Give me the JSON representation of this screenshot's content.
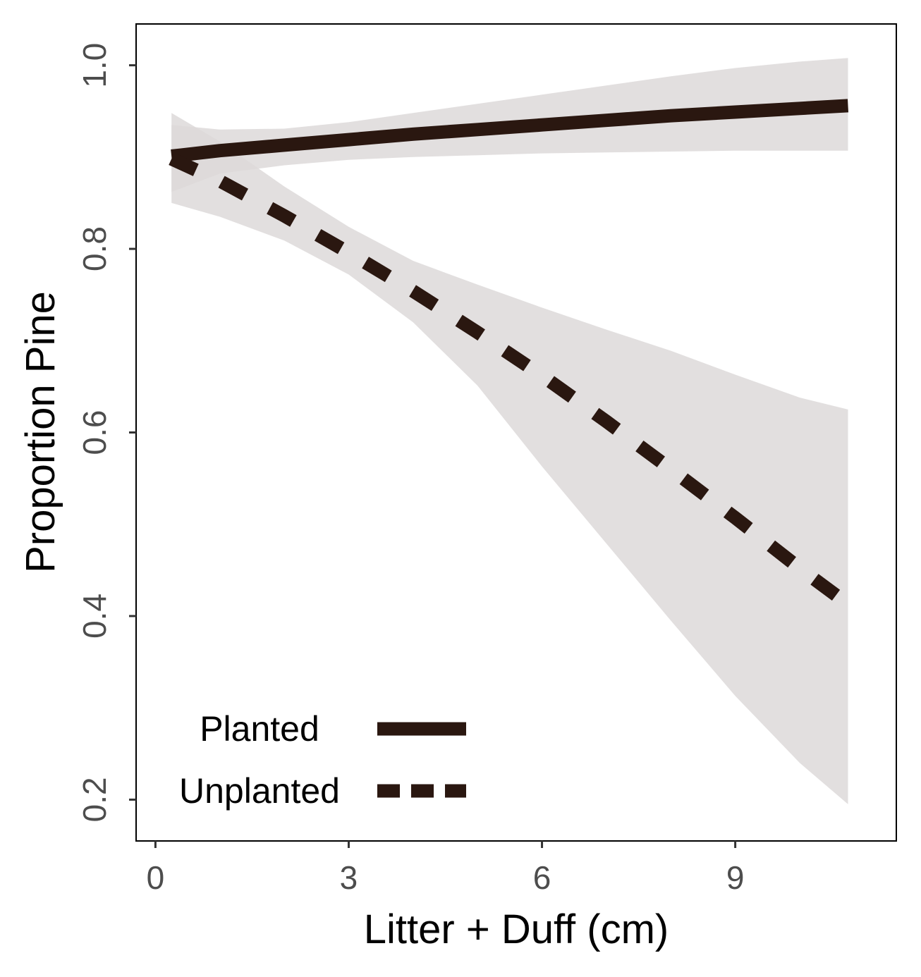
{
  "chart_data": {
    "type": "line",
    "title": "",
    "xlabel": "Litter + Duff (cm)",
    "ylabel": "Proportion Pine",
    "xlim": [
      -0.3,
      11.5
    ],
    "ylim": [
      0.155,
      1.045
    ],
    "xticks": [
      0,
      3,
      6,
      9
    ],
    "xtick_labels": [
      "0",
      "3",
      "6",
      "9"
    ],
    "yticks": [
      0.2,
      0.4,
      0.6,
      0.8,
      1.0
    ],
    "ytick_labels": [
      "0.2",
      "0.4",
      "0.6",
      "0.8",
      "1.0"
    ],
    "grid": false,
    "legend_position": "bottom-left",
    "series": [
      {
        "name": "Planted",
        "line_style": "solid",
        "color": "#2a1710",
        "x": [
          0.25,
          1,
          2,
          3,
          4,
          5,
          6,
          7,
          8,
          9,
          10,
          10.75
        ],
        "y": [
          0.901,
          0.907,
          0.913,
          0.919,
          0.925,
          0.93,
          0.935,
          0.94,
          0.945,
          0.949,
          0.953,
          0.956
        ],
        "ci_lower": [
          0.862,
          0.882,
          0.891,
          0.897,
          0.9,
          0.902,
          0.904,
          0.905,
          0.906,
          0.907,
          0.907,
          0.907
        ],
        "ci_upper": [
          0.935,
          0.93,
          0.931,
          0.938,
          0.948,
          0.958,
          0.968,
          0.978,
          0.988,
          0.997,
          1.004,
          1.008
        ]
      },
      {
        "name": "Unplanted",
        "line_style": "dashed",
        "color": "#2a1710",
        "x": [
          0.25,
          1,
          2,
          3,
          4,
          5,
          6,
          7,
          8,
          9,
          10,
          10.75
        ],
        "y": [
          0.898,
          0.874,
          0.836,
          0.796,
          0.754,
          0.709,
          0.662,
          0.612,
          0.56,
          0.507,
          0.452,
          0.413
        ],
        "ci_lower": [
          0.85,
          0.835,
          0.809,
          0.772,
          0.72,
          0.651,
          0.563,
          0.479,
          0.395,
          0.313,
          0.24,
          0.195
        ],
        "ci_upper": [
          0.948,
          0.917,
          0.868,
          0.824,
          0.787,
          0.761,
          0.736,
          0.712,
          0.689,
          0.663,
          0.638,
          0.625
        ]
      }
    ],
    "band_color": "#ddd9d9",
    "line_color": "#2a1710"
  }
}
